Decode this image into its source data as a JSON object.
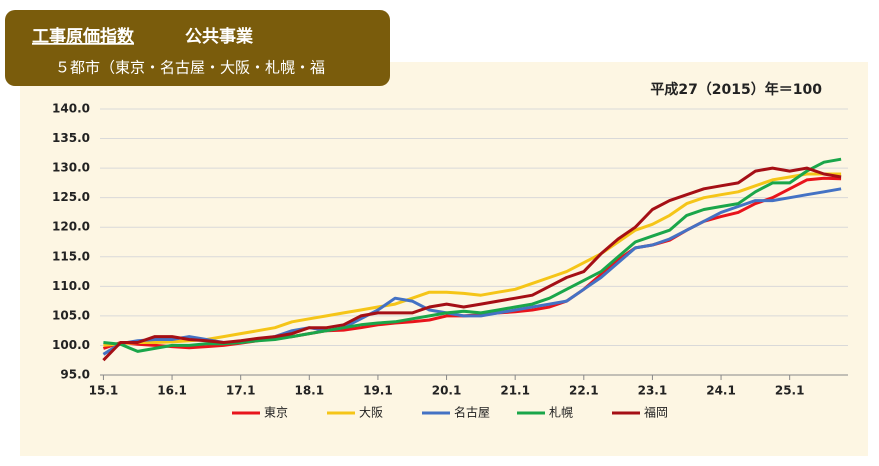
{
  "chart_data": {
    "type": "line",
    "title": "工事原価指数",
    "subtitle": "公共事業",
    "header_note": "５都市（東京・名古屋・大阪・札幌・福",
    "annotation": "平成27（2015）年＝100",
    "x": [
      2015,
      2015.25,
      2015.5,
      2015.75,
      2016,
      2016.25,
      2016.5,
      2016.75,
      2017,
      2017.25,
      2017.5,
      2017.75,
      2018,
      2018.25,
      2018.5,
      2018.75,
      2019,
      2019.25,
      2019.5,
      2019.75,
      2020,
      2020.25,
      2020.5,
      2020.75,
      2021,
      2021.25,
      2021.5,
      2021.75,
      2022,
      2022.25,
      2022.5,
      2022.75,
      2023,
      2023.25,
      2023.5,
      2023.75,
      2024,
      2024.25,
      2024.5,
      2024.75,
      2025,
      2025.25,
      2025.5,
      2025.75
    ],
    "xlim": [
      2014.95,
      2025.85
    ],
    "xticks": [
      {
        "value": 2015,
        "label": "15.1"
      },
      {
        "value": 2016,
        "label": "16.1"
      },
      {
        "value": 2017,
        "label": "17.1"
      },
      {
        "value": 2018,
        "label": "18.1"
      },
      {
        "value": 2019,
        "label": "19.1"
      },
      {
        "value": 2020,
        "label": "20.1"
      },
      {
        "value": 2021,
        "label": "21.1"
      },
      {
        "value": 2022,
        "label": "22.1"
      },
      {
        "value": 2023,
        "label": "23.1"
      },
      {
        "value": 2024,
        "label": "24.1"
      },
      {
        "value": 2025,
        "label": "25.1"
      }
    ],
    "ylim": [
      95,
      140
    ],
    "yticks": [
      {
        "value": 95,
        "label": "95.0"
      },
      {
        "value": 100,
        "label": "100.0"
      },
      {
        "value": 105,
        "label": "105.0"
      },
      {
        "value": 110,
        "label": "110.0"
      },
      {
        "value": 115,
        "label": "115.0"
      },
      {
        "value": 120,
        "label": "120.0"
      },
      {
        "value": 125,
        "label": "125.0"
      },
      {
        "value": 130,
        "label": "130.0"
      },
      {
        "value": 135,
        "label": "135.0"
      },
      {
        "value": 140,
        "label": "140.0"
      }
    ],
    "grid": true,
    "legend": "bottom",
    "series": [
      {
        "name": "東京",
        "color": "#e8141c",
        "values": [
          99.5,
          100.5,
          100.2,
          100.0,
          99.8,
          99.6,
          99.8,
          100.0,
          100.4,
          100.8,
          101.2,
          101.5,
          102.0,
          102.5,
          102.6,
          103.0,
          103.5,
          103.8,
          104.0,
          104.3,
          105.0,
          105.0,
          105.2,
          105.5,
          105.7,
          106.0,
          106.5,
          107.5,
          109.5,
          112.0,
          114.5,
          116.5,
          117.0,
          117.8,
          119.5,
          121.0,
          121.8,
          122.5,
          124.0,
          125.0,
          126.5,
          128.0,
          128.3,
          128.2
        ]
      },
      {
        "name": "大阪",
        "color": "#f5c518",
        "values": [
          100.0,
          100.3,
          100.5,
          100.5,
          100.6,
          100.8,
          101.0,
          101.5,
          102.0,
          102.5,
          103.0,
          104.0,
          104.5,
          105.0,
          105.5,
          106.0,
          106.5,
          107.0,
          108.0,
          109.0,
          109.0,
          108.8,
          108.5,
          109.0,
          109.5,
          110.5,
          111.5,
          112.5,
          114.0,
          115.5,
          117.5,
          119.5,
          120.5,
          122.0,
          124.0,
          125.0,
          125.5,
          126.0,
          127.0,
          128.0,
          128.5,
          129.0,
          129.0,
          129.0
        ]
      },
      {
        "name": "名古屋",
        "color": "#4472c4",
        "values": [
          98.5,
          100.3,
          100.8,
          101.0,
          101.0,
          101.5,
          101.0,
          100.5,
          100.5,
          101.0,
          101.5,
          102.5,
          103.0,
          102.5,
          103.0,
          104.5,
          106.0,
          108.0,
          107.5,
          106.0,
          105.5,
          105.0,
          105.0,
          105.5,
          106.0,
          106.5,
          107.0,
          107.5,
          109.5,
          111.5,
          114.0,
          116.5,
          117.0,
          118.0,
          119.5,
          121.0,
          122.5,
          123.5,
          124.5,
          124.5,
          125.0,
          125.5,
          126.0,
          126.5
        ]
      },
      {
        "name": "札幌",
        "color": "#1aa64a",
        "values": [
          100.5,
          100.2,
          99.0,
          99.5,
          100.0,
          100.0,
          100.3,
          100.3,
          100.5,
          100.8,
          101.0,
          101.5,
          102.0,
          102.5,
          103.0,
          103.5,
          103.8,
          104.0,
          104.5,
          105.0,
          105.5,
          105.8,
          105.5,
          106.0,
          106.5,
          107.0,
          108.0,
          109.5,
          111.0,
          112.5,
          115.0,
          117.5,
          118.5,
          119.5,
          122.0,
          123.0,
          123.5,
          124.0,
          126.0,
          127.5,
          127.5,
          129.5,
          131.0,
          131.5
        ]
      },
      {
        "name": "福岡",
        "color": "#a50f15",
        "values": [
          97.5,
          100.5,
          100.5,
          101.5,
          101.5,
          101.0,
          100.8,
          100.5,
          100.8,
          101.2,
          101.5,
          102.0,
          103.0,
          103.0,
          103.5,
          105.0,
          105.5,
          105.5,
          105.5,
          106.5,
          107.0,
          106.5,
          107.0,
          107.5,
          108.0,
          108.5,
          110.0,
          111.5,
          112.5,
          115.5,
          118.0,
          120.0,
          123.0,
          124.5,
          125.5,
          126.5,
          127.0,
          127.5,
          129.5,
          130.0,
          129.5,
          130.0,
          129.0,
          128.5
        ]
      }
    ]
  }
}
